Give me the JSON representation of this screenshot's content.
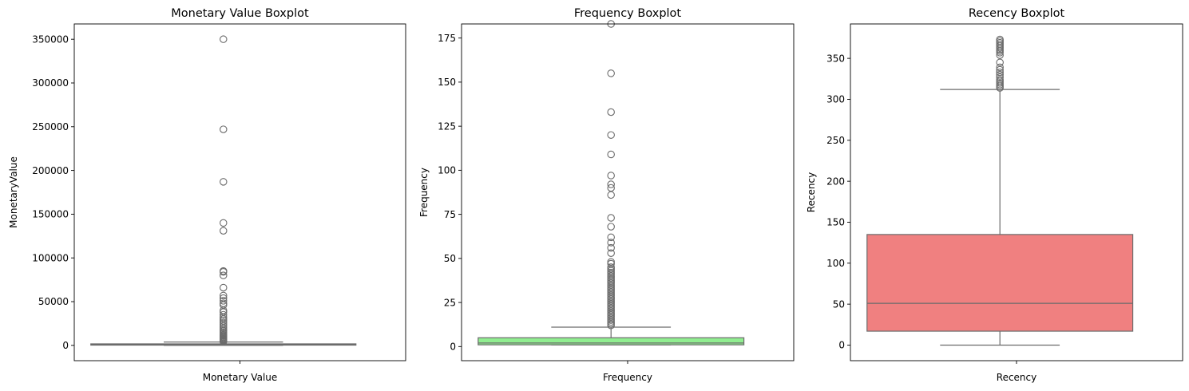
{
  "chart_data": [
    {
      "type": "boxplot",
      "title": "Monetary Value Boxplot",
      "xlabel": "Monetary Value",
      "ylabel": "MonetaryValue",
      "ylim": [
        -17500,
        367500
      ],
      "yticks": [
        0,
        50000,
        100000,
        150000,
        200000,
        250000,
        300000,
        350000
      ],
      "box_color": "#a9a9a9",
      "box": {
        "q1": 300,
        "median": 700,
        "q3": 1700,
        "whisker_low": 0,
        "whisker_high": 3800
      },
      "outliers": [
        350000,
        247000,
        187000,
        140000,
        131000,
        85000,
        84000,
        80000,
        66000,
        57000,
        54000,
        51000,
        48000,
        46000,
        40000,
        38000,
        35000,
        32000,
        30000,
        28000,
        26000,
        24000,
        22000,
        20000,
        18000,
        16500,
        15000,
        13500,
        12000,
        11000,
        10000,
        9000,
        8000,
        7000,
        6200,
        5500,
        4800,
        4300
      ]
    },
    {
      "type": "boxplot",
      "title": "Frequency Boxplot",
      "xlabel": "Frequency",
      "ylabel": "Frequency",
      "ylim": [
        -8,
        183
      ],
      "yticks": [
        0,
        25,
        50,
        75,
        100,
        125,
        150,
        175
      ],
      "box_color": "#90ee90",
      "box": {
        "q1": 1,
        "median": 2,
        "q3": 5,
        "whisker_low": 1,
        "whisker_high": 11
      },
      "outliers": [
        183,
        155,
        133,
        120,
        109,
        97,
        92,
        90,
        86,
        73,
        68,
        62,
        59,
        56,
        53,
        48,
        47,
        45,
        44,
        43,
        42,
        41,
        40,
        39,
        38,
        37,
        36,
        35,
        34,
        33,
        32,
        31,
        30,
        29,
        28,
        27,
        26,
        25,
        24,
        23,
        22,
        21,
        20,
        19,
        18,
        17,
        16,
        15,
        14,
        13,
        12
      ]
    },
    {
      "type": "boxplot",
      "title": "Recency Boxplot",
      "xlabel": "Recency",
      "ylabel": "Recency",
      "ylim": [
        -19,
        392
      ],
      "yticks": [
        0,
        50,
        100,
        150,
        200,
        250,
        300,
        350
      ],
      "box_color": "#f08080",
      "box": {
        "q1": 17,
        "median": 51,
        "q3": 135,
        "whisker_low": 0,
        "whisker_high": 312
      },
      "outliers": [
        373,
        371,
        369,
        367,
        365,
        363,
        361,
        359,
        357,
        354,
        345,
        339,
        336,
        333,
        330,
        327,
        324,
        322,
        320,
        318,
        316,
        314
      ]
    }
  ]
}
